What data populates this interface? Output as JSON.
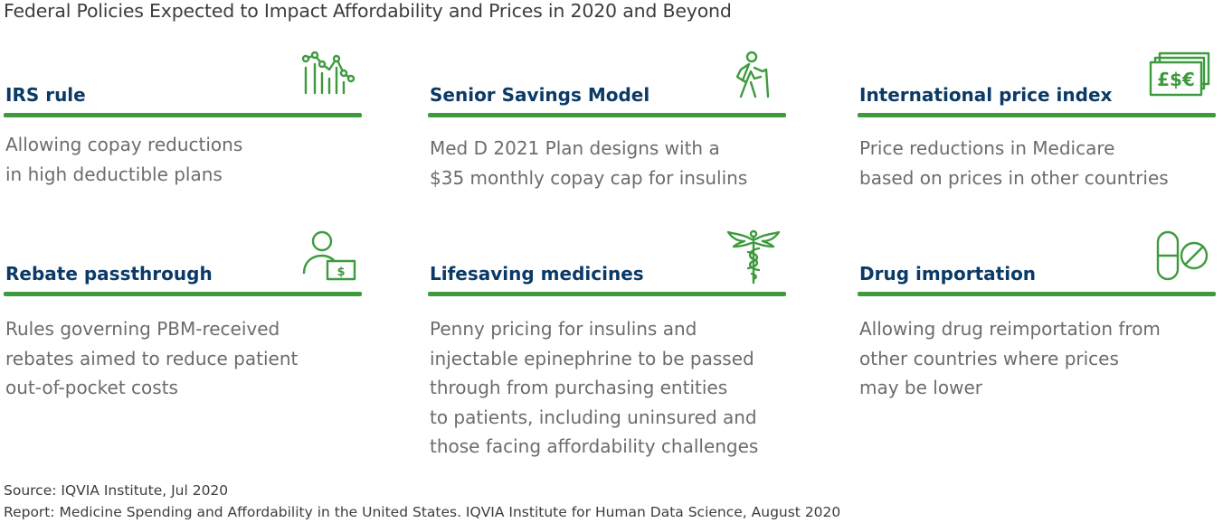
{
  "title": "Federal Policies Expected to Impact Affordability and Prices in 2020 and Beyond",
  "accent_color": "#3d9a3d",
  "heading_color": "#0b3a66",
  "cards": [
    {
      "title": "IRS rule",
      "icon": "chart-icon",
      "body": [
        "Allowing copay reductions",
        "in high deductible plans"
      ]
    },
    {
      "title": "Senior Savings Model",
      "icon": "senior-walking-icon",
      "body": [
        "Med D 2021 Plan designs with a",
        "$35 monthly copay cap for insulins"
      ]
    },
    {
      "title": "International price index",
      "icon": "currency-notes-icon",
      "currency_symbols": "£$€",
      "body": [
        "Price reductions in Medicare",
        "based on prices in other countries"
      ]
    },
    {
      "title": "Rebate passthrough",
      "icon": "person-money-icon",
      "currency_symbol": "$",
      "body": [
        "Rules governing PBM-received",
        "rebates aimed to reduce patient",
        "out-of-pocket costs"
      ]
    },
    {
      "title": "Lifesaving medicines",
      "icon": "caduceus-icon",
      "body": [
        "Penny pricing for insulins and",
        "injectable epinephrine to be passed",
        "through from purchasing entities",
        "to patients, including uninsured and",
        "those facing affordability challenges"
      ]
    },
    {
      "title": "Drug importation",
      "icon": "pills-icon",
      "body": [
        "Allowing drug reimportation from",
        "other countries where prices",
        "may be lower"
      ]
    }
  ],
  "footer": {
    "source": "Source: IQVIA Institute, Jul 2020",
    "report": "Report: Medicine Spending and Affordability in the United States. IQVIA Institute for Human Data Science, August 2020"
  }
}
